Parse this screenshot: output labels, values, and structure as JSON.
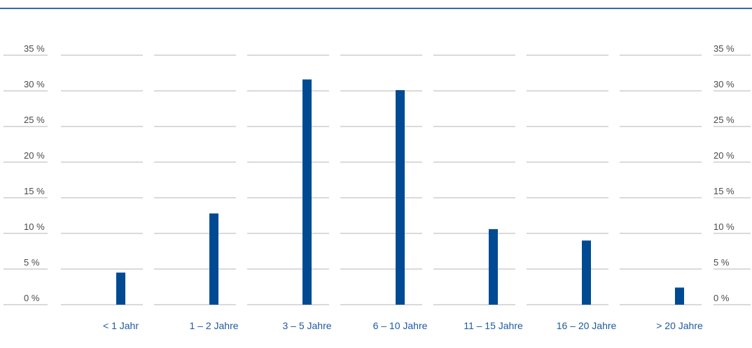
{
  "chart_data": {
    "type": "bar",
    "categories": [
      "< 1 Jahr",
      "1 – 2 Jahre",
      "3 – 5 Jahre",
      "6 – 10 Jahre",
      "11 – 15 Jahre",
      "16 – 20 Jahre",
      "> 20 Jahre"
    ],
    "values": [
      4.5,
      12.8,
      31.6,
      30.1,
      10.6,
      9.0,
      2.4
    ],
    "ylim": [
      0,
      35
    ],
    "yticks": [
      "0 %",
      "5 %",
      "10 %",
      "15 %",
      "20 %",
      "25 %",
      "30 %",
      "35 %"
    ],
    "grid": true,
    "legend": "none",
    "bar_color": "#004a93",
    "accent_color": "#336ab3"
  }
}
